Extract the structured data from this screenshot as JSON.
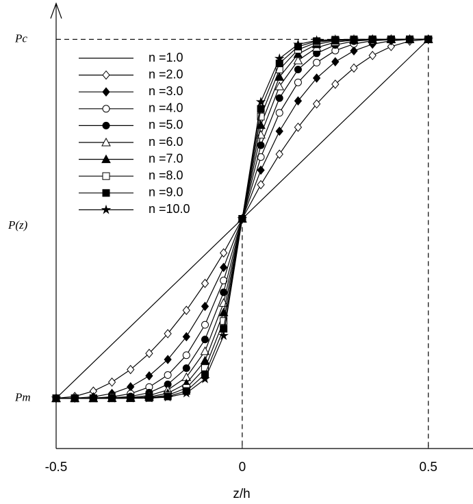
{
  "chart_data": {
    "type": "line",
    "xlabel": "z/h",
    "ylabel": "P(z)",
    "x": [
      -0.5,
      -0.45,
      -0.4,
      -0.35,
      -0.3,
      -0.25,
      -0.2,
      -0.15,
      -0.1,
      -0.05,
      0,
      0.05,
      0.1,
      0.15,
      0.2,
      0.25,
      0.3,
      0.35,
      0.4,
      0.45,
      0.5
    ],
    "xlim": [
      -0.5,
      0.62
    ],
    "xticks": [
      -0.5,
      0,
      0.5
    ],
    "ylim": [
      -0.14,
      1.1
    ],
    "yticks": [
      {
        "value": 0,
        "label": "Pm"
      },
      {
        "value": 1,
        "label": "Pc"
      }
    ],
    "legend": "upper left",
    "grid": false,
    "series": [
      {
        "name": "n =1.0",
        "color": "#000000",
        "marker": "none",
        "values": [
          0,
          0.05,
          0.1,
          0.15,
          0.2,
          0.25,
          0.3,
          0.35,
          0.4,
          0.45,
          0.5,
          0.55,
          0.6,
          0.65,
          0.7,
          0.75,
          0.8,
          0.85,
          0.9,
          0.95,
          1
        ]
      },
      {
        "name": "n =2.0",
        "color": "#000000",
        "marker": "diamond-open",
        "values": [
          0,
          0.005,
          0.02,
          0.045,
          0.08,
          0.125,
          0.18,
          0.245,
          0.32,
          0.405,
          0.5,
          0.595,
          0.68,
          0.755,
          0.82,
          0.875,
          0.92,
          0.955,
          0.98,
          0.995,
          1
        ]
      },
      {
        "name": "n =3.0",
        "color": "#000000",
        "marker": "diamond",
        "values": [
          0,
          0.0005,
          0.004,
          0.0135,
          0.032,
          0.0625,
          0.108,
          0.1715,
          0.256,
          0.3645,
          0.5,
          0.6355,
          0.744,
          0.8285,
          0.892,
          0.9375,
          0.968,
          0.9865,
          0.996,
          0.9995,
          1
        ]
      },
      {
        "name": "n =4.0",
        "color": "#000000",
        "marker": "circle-open",
        "values": [
          0,
          0.0001,
          0.0008,
          0.004,
          0.0128,
          0.0313,
          0.0648,
          0.12,
          0.2048,
          0.328,
          0.5,
          0.672,
          0.7952,
          0.88,
          0.9352,
          0.9687,
          0.9872,
          0.996,
          0.9992,
          0.9999,
          1
        ]
      },
      {
        "name": "n =5.0",
        "color": "#000000",
        "marker": "circle",
        "values": [
          0,
          0,
          0.0002,
          0.0012,
          0.0051,
          0.0156,
          0.0389,
          0.084,
          0.1638,
          0.2952,
          0.5,
          0.7048,
          0.8362,
          0.916,
          0.9611,
          0.9844,
          0.9949,
          0.9988,
          0.9998,
          1,
          1
        ]
      },
      {
        "name": "n =6.0",
        "color": "#000000",
        "marker": "triangle-open",
        "values": [
          0,
          0,
          0,
          0.0004,
          0.002,
          0.0078,
          0.0233,
          0.0588,
          0.1311,
          0.2657,
          0.5,
          0.7343,
          0.8689,
          0.9412,
          0.9767,
          0.9922,
          0.998,
          0.9996,
          1,
          1,
          1
        ]
      },
      {
        "name": "n =7.0",
        "color": "#000000",
        "marker": "triangle",
        "values": [
          0,
          0,
          0,
          0.0001,
          0.0008,
          0.0039,
          0.014,
          0.0412,
          0.1049,
          0.2391,
          0.5,
          0.7609,
          0.8951,
          0.9588,
          0.986,
          0.9961,
          0.9992,
          0.9999,
          1,
          1,
          1
        ]
      },
      {
        "name": "n =8.0",
        "color": "#000000",
        "marker": "square-open",
        "values": [
          0,
          0,
          0,
          0,
          0.0003,
          0.002,
          0.0084,
          0.0288,
          0.0839,
          0.2152,
          0.5,
          0.7848,
          0.9161,
          0.9712,
          0.9916,
          0.998,
          0.9997,
          1,
          1,
          1,
          1
        ]
      },
      {
        "name": "n =9.0",
        "color": "#000000",
        "marker": "square",
        "values": [
          0,
          0,
          0,
          0,
          0.0001,
          0.001,
          0.005,
          0.0202,
          0.0671,
          0.1937,
          0.5,
          0.8063,
          0.9329,
          0.9798,
          0.995,
          0.999,
          0.9999,
          1,
          1,
          1,
          1
        ]
      },
      {
        "name": "n =10.0",
        "color": "#000000",
        "marker": "star",
        "values": [
          0,
          0,
          0,
          0,
          0,
          0.0005,
          0.003,
          0.0141,
          0.0537,
          0.1743,
          0.5,
          0.8257,
          0.9463,
          0.9859,
          0.997,
          0.9995,
          1,
          1,
          1,
          1,
          1
        ]
      }
    ]
  }
}
